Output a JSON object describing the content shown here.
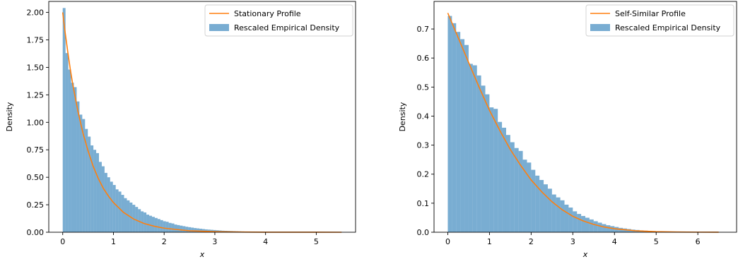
{
  "chart_data": [
    {
      "type": "bar",
      "title": "",
      "xlabel": "x",
      "ylabel": "Density",
      "xlim": [
        -0.275,
        5.775
      ],
      "ylim": [
        0,
        2.1
      ],
      "xticks": [
        0,
        1,
        2,
        3,
        4,
        5
      ],
      "yticks": [
        0.0,
        0.25,
        0.5,
        0.75,
        1.0,
        1.25,
        1.5,
        1.75,
        2.0
      ],
      "ytick_labels": [
        "0.00",
        "0.25",
        "0.50",
        "0.75",
        "1.00",
        "1.25",
        "1.50",
        "1.75",
        "2.00"
      ],
      "grid": false,
      "legend_position": "top-right",
      "series": [
        {
          "name": "Stationary Profile",
          "kind": "line",
          "color": "#ff7f0e",
          "x": [
            0.0,
            0.02,
            0.05,
            0.1,
            0.15,
            0.2,
            0.3,
            0.4,
            0.5,
            0.6,
            0.7,
            0.8,
            0.9,
            1.0,
            1.2,
            1.4,
            1.6,
            1.8,
            2.0,
            2.5,
            3.0,
            3.5,
            4.0,
            4.5,
            5.0,
            5.5
          ],
          "y": [
            2.0,
            1.92,
            1.81,
            1.64,
            1.48,
            1.34,
            1.1,
            0.9,
            0.74,
            0.6,
            0.49,
            0.4,
            0.33,
            0.27,
            0.18,
            0.12,
            0.08,
            0.055,
            0.037,
            0.013,
            0.005,
            0.002,
            0.0007,
            0.0002,
            0.0001,
            0.0
          ]
        },
        {
          "name": "Rescaled Empirical Density",
          "kind": "histogram",
          "color": "#1f77b4",
          "opacity": 0.6,
          "bin_width": 0.055,
          "bin_start": 0.0,
          "values": [
            2.04,
            1.63,
            1.48,
            1.36,
            1.32,
            1.19,
            1.07,
            1.03,
            0.94,
            0.87,
            0.79,
            0.75,
            0.72,
            0.64,
            0.6,
            0.54,
            0.5,
            0.46,
            0.43,
            0.39,
            0.37,
            0.34,
            0.31,
            0.29,
            0.27,
            0.25,
            0.23,
            0.21,
            0.19,
            0.18,
            0.16,
            0.15,
            0.14,
            0.13,
            0.12,
            0.11,
            0.1,
            0.095,
            0.085,
            0.08,
            0.07,
            0.065,
            0.06,
            0.055,
            0.05,
            0.046,
            0.042,
            0.038,
            0.035,
            0.032,
            0.029,
            0.026,
            0.024,
            0.022,
            0.02,
            0.018,
            0.016,
            0.014,
            0.013,
            0.012,
            0.011,
            0.01,
            0.009,
            0.008,
            0.007,
            0.006,
            0.005,
            0.0045,
            0.004,
            0.0035,
            0.003,
            0.0027,
            0.0024,
            0.0021,
            0.0018,
            0.0015,
            0.0013,
            0.0011,
            0.001,
            0.0008,
            0.0007,
            0.0006,
            0.0005,
            0.0004,
            0.0003,
            0.0003,
            0.0002,
            0.0002,
            0.0001,
            0.0001
          ]
        }
      ]
    },
    {
      "type": "bar",
      "title": "",
      "xlabel": "x",
      "ylabel": "Density",
      "xlim": [
        -0.33,
        6.93
      ],
      "ylim": [
        0,
        0.795
      ],
      "xticks": [
        0,
        1,
        2,
        3,
        4,
        5,
        6
      ],
      "yticks": [
        0.0,
        0.1,
        0.2,
        0.3,
        0.4,
        0.5,
        0.6,
        0.7
      ],
      "ytick_labels": [
        "0.0",
        "0.1",
        "0.2",
        "0.3",
        "0.4",
        "0.5",
        "0.6",
        "0.7"
      ],
      "grid": false,
      "legend_position": "top-right",
      "series": [
        {
          "name": "Self-Similar Profile",
          "kind": "line",
          "color": "#ff7f0e",
          "x": [
            0.0,
            0.25,
            0.5,
            0.75,
            1.0,
            1.25,
            1.5,
            1.75,
            2.0,
            2.25,
            2.5,
            2.75,
            3.0,
            3.25,
            3.5,
            3.75,
            4.0,
            4.5,
            5.0,
            5.5,
            6.0,
            6.5
          ],
          "y": [
            0.755,
            0.67,
            0.585,
            0.5,
            0.42,
            0.35,
            0.285,
            0.23,
            0.18,
            0.14,
            0.105,
            0.077,
            0.055,
            0.039,
            0.027,
            0.018,
            0.012,
            0.005,
            0.002,
            0.0008,
            0.0003,
            0.0001
          ]
        },
        {
          "name": "Rescaled Empirical Density",
          "kind": "histogram",
          "color": "#1f77b4",
          "opacity": 0.6,
          "bin_width": 0.1,
          "bin_start": 0.0,
          "values": [
            0.745,
            0.72,
            0.69,
            0.665,
            0.645,
            0.58,
            0.575,
            0.54,
            0.505,
            0.475,
            0.43,
            0.425,
            0.38,
            0.36,
            0.335,
            0.31,
            0.29,
            0.28,
            0.25,
            0.24,
            0.215,
            0.195,
            0.18,
            0.165,
            0.15,
            0.13,
            0.12,
            0.11,
            0.095,
            0.085,
            0.072,
            0.063,
            0.056,
            0.05,
            0.044,
            0.038,
            0.033,
            0.028,
            0.024,
            0.021,
            0.018,
            0.015,
            0.013,
            0.011,
            0.009,
            0.0078,
            0.0065,
            0.0055,
            0.0046,
            0.0038,
            0.0031,
            0.0026,
            0.0021,
            0.0017,
            0.0014,
            0.0011,
            0.0009,
            0.0007,
            0.0006,
            0.0005,
            0.0004,
            0.0003,
            0.0002,
            0.0002,
            0.0001,
            0.0001
          ]
        }
      ]
    }
  ]
}
